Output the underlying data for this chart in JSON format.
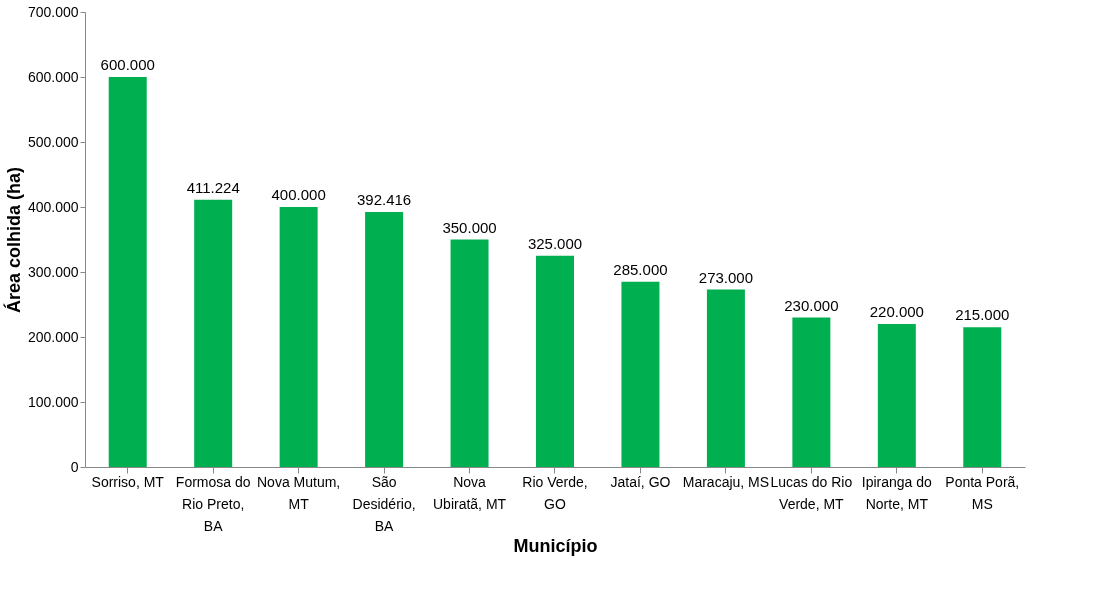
{
  "chart_data": {
    "type": "bar",
    "xlabel": "Município",
    "ylabel": "Área colhida (ha)",
    "categories": [
      "Sorriso, MT",
      "Formosa do Rio Preto, BA",
      "Nova Mutum, MT",
      "São Desidério, BA",
      "Nova Ubiratã, MT",
      "Rio Verde, GO",
      "Jataí, GO",
      "Maracaju, MS",
      "Lucas do Rio Verde, MT",
      "Ipiranga do Norte, MT",
      "Ponta Porã, MS"
    ],
    "values": [
      600000,
      411224,
      400000,
      392416,
      350000,
      325000,
      285000,
      273000,
      230000,
      220000,
      215000
    ],
    "value_labels": [
      "600.000",
      "411.224",
      "400.000",
      "392.416",
      "350.000",
      "325.000",
      "285.000",
      "273.000",
      "230.000",
      "220.000",
      "215.000"
    ],
    "color": "#00b050",
    "ylim": [
      0,
      700000
    ],
    "yticks": [
      {
        "value": 0,
        "label": "0"
      },
      {
        "value": 100000,
        "label": "100.000"
      },
      {
        "value": 200000,
        "label": "200.000"
      },
      {
        "value": 300000,
        "label": "300.000"
      },
      {
        "value": 400000,
        "label": "400.000"
      },
      {
        "value": 500000,
        "label": "500.000"
      },
      {
        "value": 600000,
        "label": "600.000"
      },
      {
        "value": 700000,
        "label": "700.000"
      }
    ],
    "grid": false
  }
}
